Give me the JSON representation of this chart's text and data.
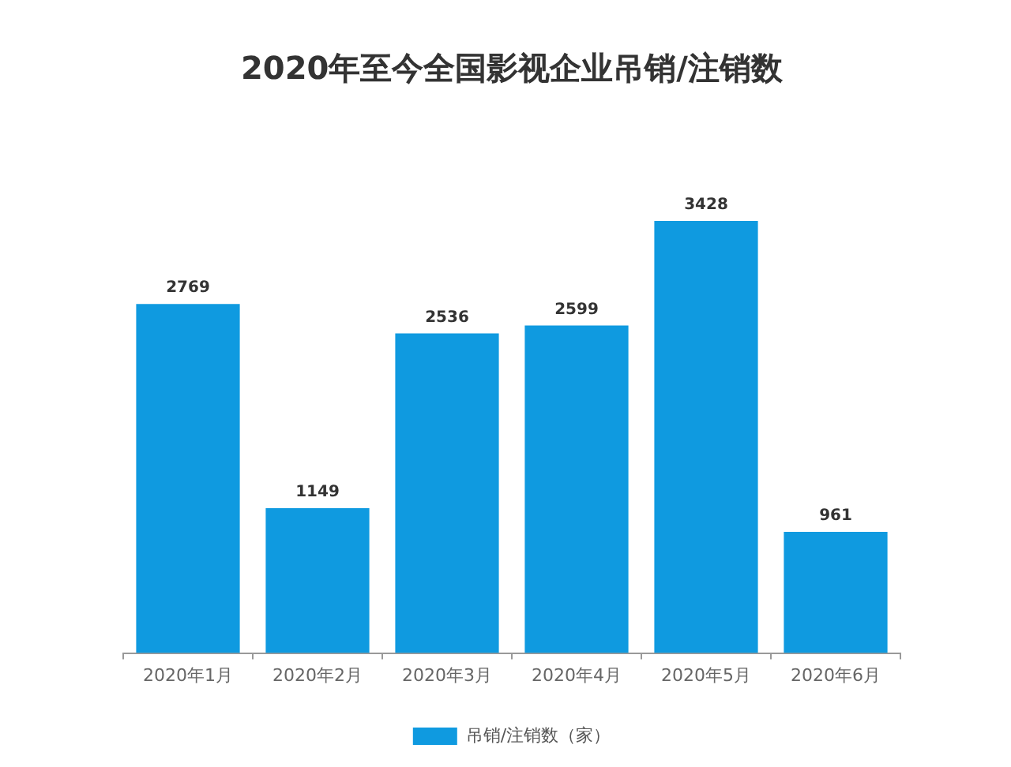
{
  "chart_data": {
    "type": "bar",
    "title": "2020年至今全国影视企业吊销/注销数",
    "categories": [
      "2020年1月",
      "2020年2月",
      "2020年3月",
      "2020年4月",
      "2020年5月",
      "2020年6月"
    ],
    "series": [
      {
        "name": "吊销/注销数（家）",
        "color": "#0f9ae0",
        "values": [
          2769,
          1149,
          2536,
          2599,
          3428,
          961
        ]
      }
    ],
    "data_labels": true,
    "legend": "bottom",
    "tick_labels": "x"
  }
}
